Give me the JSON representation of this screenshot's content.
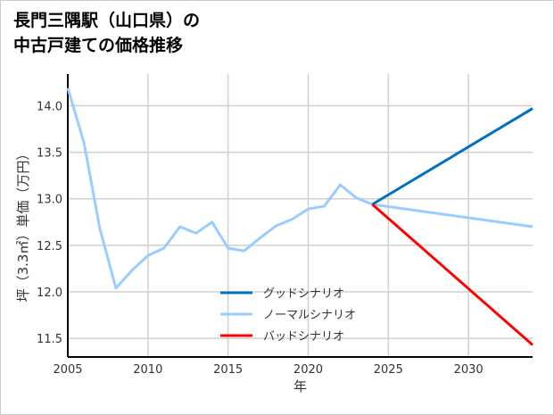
{
  "chart_data": {
    "type": "line",
    "title_lines": [
      "長門三隅駅（山口県）の",
      "中古戸建ての価格推移"
    ],
    "xlabel": "年",
    "ylabel": "坪（3.3㎡）単価（万円）",
    "xlim": [
      2005,
      2034
    ],
    "ylim": [
      11.3,
      14.34
    ],
    "xticks": [
      2005,
      2010,
      2015,
      2020,
      2025,
      2030
    ],
    "yticks": [
      11.5,
      12.0,
      12.5,
      13.0,
      13.5,
      14.0
    ],
    "xtick_labels": [
      "2005",
      "2010",
      "2015",
      "2020",
      "2025",
      "2030"
    ],
    "ytick_labels": [
      "11.5",
      "12.0",
      "12.5",
      "13.0",
      "13.5",
      "14.0"
    ],
    "grid": true,
    "legend_position": "bottom-center",
    "series": [
      {
        "name": "グッドシナリオ",
        "color": "#0070C0",
        "x": [
          2024,
          2034
        ],
        "y": [
          12.94,
          13.97
        ]
      },
      {
        "name": "ノーマルシナリオ",
        "color": "#99CCFF",
        "x": [
          2005,
          2006,
          2007,
          2008,
          2009,
          2010,
          2011,
          2012,
          2013,
          2014,
          2015,
          2016,
          2017,
          2018,
          2019,
          2020,
          2021,
          2022,
          2023,
          2024,
          2034
        ],
        "y": [
          14.19,
          13.61,
          12.68,
          12.04,
          12.23,
          12.39,
          12.47,
          12.7,
          12.63,
          12.75,
          12.47,
          12.44,
          12.58,
          12.71,
          12.78,
          12.89,
          12.92,
          13.15,
          13.01,
          12.94,
          12.7
        ]
      },
      {
        "name": "バッドシナリオ",
        "color": "#FF0000",
        "x": [
          2024,
          2034
        ],
        "y": [
          12.94,
          11.43
        ]
      }
    ]
  }
}
